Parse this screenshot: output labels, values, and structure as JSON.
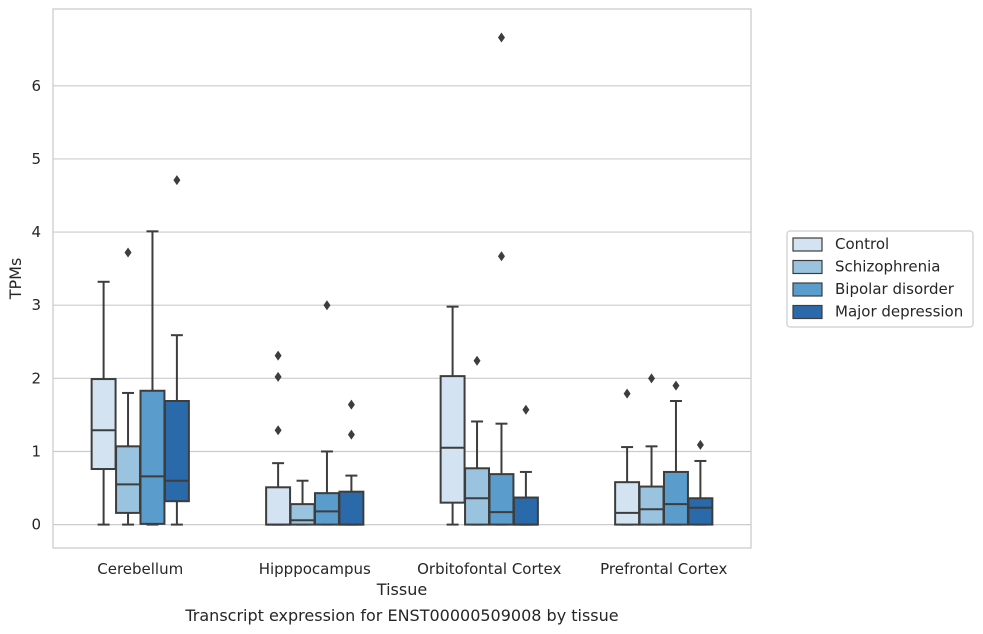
{
  "chart_data": {
    "type": "box",
    "title": "Transcript expression for ENST00000509008 by tissue",
    "xlabel": "Tissue",
    "ylabel": "TPMs",
    "ylim": [
      -0.32,
      7.05
    ],
    "y_ticks": [
      0,
      1,
      2,
      3,
      4,
      5,
      6
    ],
    "grid": true,
    "legend_position": "right",
    "categories": [
      "Cerebellum",
      "Hipppocampus",
      "Orbitofontal Cortex",
      "Prefrontal Cortex"
    ],
    "series": [
      {
        "name": "Control",
        "color": "#d3e3f1",
        "boxes": [
          {
            "whislo": 0,
            "q1": 0.76,
            "med": 1.29,
            "q3": 1.99,
            "whishi": 3.32,
            "fliers": []
          },
          {
            "whislo": 0,
            "q1": 0,
            "med": 0,
            "q3": 0.51,
            "whishi": 0.84,
            "fliers": [
              1.29,
              2.02,
              2.31
            ]
          },
          {
            "whislo": 0,
            "q1": 0.3,
            "med": 1.05,
            "q3": 2.03,
            "whishi": 2.98,
            "fliers": []
          },
          {
            "whislo": 0,
            "q1": 0,
            "med": 0.16,
            "q3": 0.58,
            "whishi": 1.06,
            "fliers": [
              1.79
            ]
          }
        ]
      },
      {
        "name": "Schizophrenia",
        "color": "#9ac3df",
        "boxes": [
          {
            "whislo": 0,
            "q1": 0.16,
            "med": 0.55,
            "q3": 1.07,
            "whishi": 1.8,
            "fliers": [
              3.72
            ]
          },
          {
            "whislo": 0,
            "q1": 0,
            "med": 0.06,
            "q3": 0.28,
            "whishi": 0.6,
            "fliers": []
          },
          {
            "whislo": 0,
            "q1": 0,
            "med": 0.36,
            "q3": 0.77,
            "whishi": 1.41,
            "fliers": [
              2.24
            ]
          },
          {
            "whislo": 0,
            "q1": 0,
            "med": 0.21,
            "q3": 0.52,
            "whishi": 1.07,
            "fliers": [
              2.0
            ]
          }
        ]
      },
      {
        "name": "Bipolar disorder",
        "color": "#5a9ccb",
        "boxes": [
          {
            "whislo": 0,
            "q1": 0.01,
            "med": 0.66,
            "q3": 1.83,
            "whishi": 4.01,
            "fliers": []
          },
          {
            "whislo": 0,
            "q1": 0,
            "med": 0.18,
            "q3": 0.43,
            "whishi": 1.0,
            "fliers": [
              3.0
            ]
          },
          {
            "whislo": 0,
            "q1": 0,
            "med": 0.17,
            "q3": 0.69,
            "whishi": 1.38,
            "fliers": [
              3.67,
              6.66
            ]
          },
          {
            "whislo": 0,
            "q1": 0,
            "med": 0.28,
            "q3": 0.72,
            "whishi": 1.69,
            "fliers": [
              1.9
            ]
          }
        ]
      },
      {
        "name": "Major depression",
        "color": "#2a6aab",
        "boxes": [
          {
            "whislo": 0,
            "q1": 0.32,
            "med": 0.6,
            "q3": 1.69,
            "whishi": 2.59,
            "fliers": [
              4.71
            ]
          },
          {
            "whislo": 0,
            "q1": 0,
            "med": 0,
            "q3": 0.45,
            "whishi": 0.67,
            "fliers": [
              1.23,
              1.64
            ]
          },
          {
            "whislo": 0,
            "q1": 0,
            "med": 0,
            "q3": 0.37,
            "whishi": 0.72,
            "fliers": [
              1.57
            ]
          },
          {
            "whislo": 0,
            "q1": 0,
            "med": 0.23,
            "q3": 0.36,
            "whishi": 0.87,
            "fliers": [
              1.09
            ]
          }
        ]
      }
    ]
  }
}
